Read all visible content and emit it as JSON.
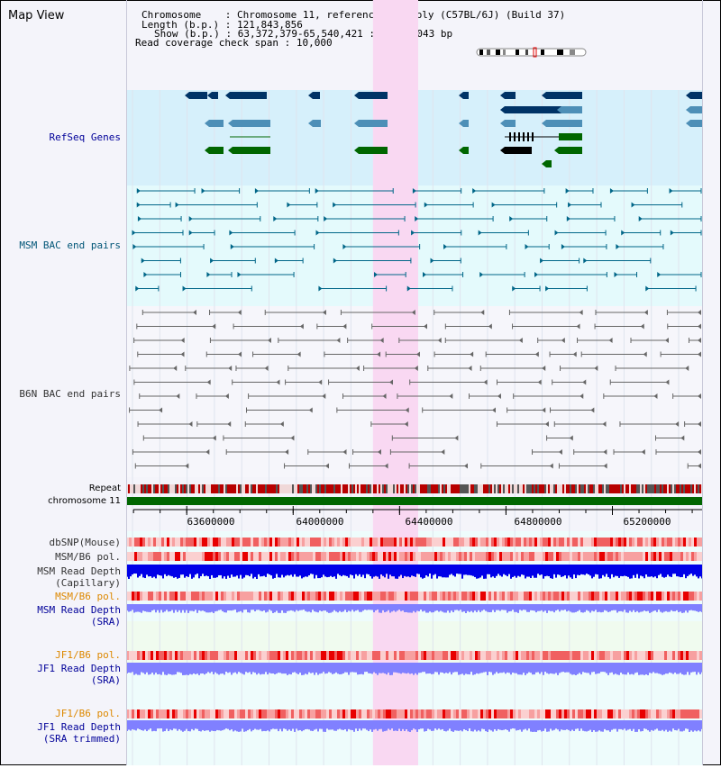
{
  "title": "Map View",
  "header": {
    "chromosome_key": "Chromosome",
    "chromosome_value": "Chromosome 11, reference assembly (C57BL/6J) (Build 37)",
    "length_key": "Length (b.p.)",
    "length_value": "121,843,856",
    "show_key": "Show (b.p.)",
    "show_value": "63,372,379-65,540,421 : 2,168,043 bp",
    "span_key": "Read coverage check span",
    "span_value": "10,000"
  },
  "tracks": {
    "refseq": "RefSeq Genes",
    "msm_bac": "MSM BAC end pairs",
    "b6n_bac": "B6N BAC end pairs",
    "repeat": "Repeat",
    "chromosome": "chromosome 11",
    "dbsnp": "dbSNP(Mouse)",
    "msm_b6_pol": "MSM/B6 pol.",
    "msm_depth_cap_1": "MSM Read Depth",
    "msm_depth_cap_2": "(Capillary)",
    "msm_b6_pol_sra": "MSM/B6 pol.",
    "msm_depth_sra_1": "MSM Read Depth",
    "msm_depth_sra_2": "(SRA)",
    "jf1_b6_pol": "JF1/B6 pol.",
    "jf1_depth_1": "JF1 Read Depth",
    "jf1_depth_2": "(SRA)",
    "jf1_b6_pol_t": "JF1/B6 pol.",
    "jf1_depth_t1": "JF1 Read Depth",
    "jf1_depth_t2": "(SRA trimmed)"
  },
  "axis": {
    "ticks": [
      "63600000",
      "64000000",
      "64400000",
      "64800000",
      "65200000"
    ],
    "tick_values": [
      63600000,
      64000000,
      64400000,
      64800000,
      65200000
    ],
    "view_start": 63372379,
    "view_end": 65540421
  },
  "highlight_region": [
    64300000,
    64470000
  ],
  "colors": {
    "refseq_bg": "#d6f0fb",
    "msm_bg": "#e4fafc",
    "highlight": "#f9d8f2",
    "gene_dark": "#003366",
    "gene_mid": "#4d8fb7",
    "gene_green": "#006600",
    "msm_line": "#006688",
    "b6n_line": "#666666",
    "chrom_bar": "#006600",
    "depth_blue": "#0000e8",
    "depth_light": "#8080ff"
  }
}
